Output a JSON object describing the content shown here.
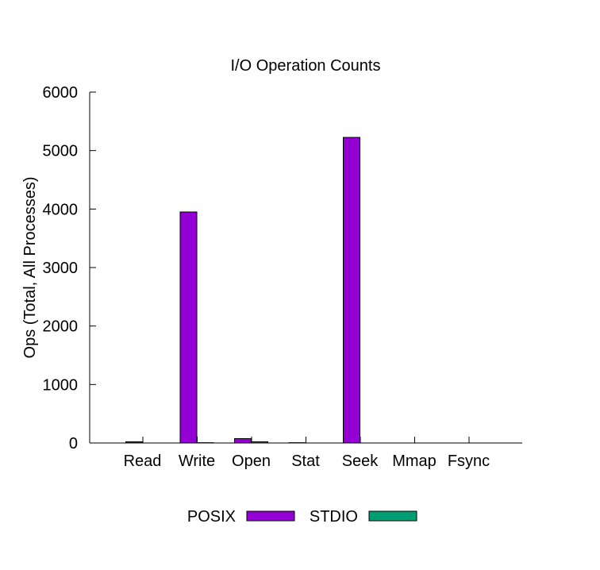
{
  "chart_data": {
    "type": "bar",
    "title": "I/O Operation Counts",
    "xlabel": "",
    "ylabel": "Ops (Total, All Processes)",
    "categories": [
      "Read",
      "Write",
      "Open",
      "Stat",
      "Seek",
      "Mmap",
      "Fsync"
    ],
    "series": [
      {
        "name": "POSIX",
        "values": [
          20,
          3950,
          75,
          5,
          5225,
          0,
          0
        ],
        "color": "#9400D3"
      },
      {
        "name": "STDIO",
        "values": [
          0,
          5,
          20,
          0,
          0,
          0,
          0
        ],
        "color": "#009E73"
      }
    ],
    "ylim": [
      0,
      6000
    ],
    "yticks": [
      0,
      1000,
      2000,
      3000,
      4000,
      5000,
      6000
    ],
    "grid": false,
    "legend_position": "bottom"
  }
}
